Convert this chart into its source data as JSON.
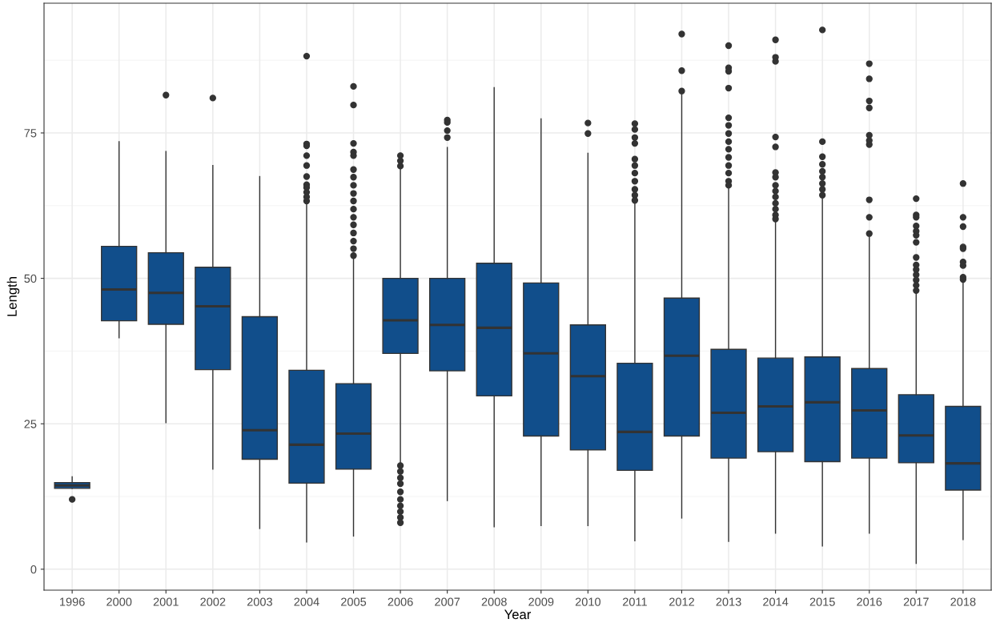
{
  "chart_data": {
    "type": "box",
    "xlabel": "Year",
    "ylabel": "Length",
    "categories": [
      "1996",
      "2000",
      "2001",
      "2002",
      "2003",
      "2004",
      "2005",
      "2006",
      "2007",
      "2008",
      "2009",
      "2010",
      "2011",
      "2012",
      "2013",
      "2014",
      "2015",
      "2016",
      "2017",
      "2018"
    ],
    "color": "#114e8b",
    "ylim": [
      -3.6,
      97.3
    ],
    "yticks": [
      0,
      25,
      50,
      75
    ],
    "grid": true,
    "boxes": [
      {
        "low": 13.9,
        "q1": 13.9,
        "median": 14.4,
        "q3": 14.9,
        "high": 15.9,
        "outliers": [
          12.0
        ]
      },
      {
        "low": 39.8,
        "q1": 42.7,
        "median": 48.1,
        "q3": 55.5,
        "high": 73.5
      },
      {
        "low": 25.2,
        "q1": 42.1,
        "median": 47.5,
        "q3": 54.4,
        "high": 71.8,
        "outliers": [
          81.5
        ]
      },
      {
        "low": 17.2,
        "q1": 34.3,
        "median": 45.2,
        "q3": 51.9,
        "high": 69.4,
        "outliers": [
          81.0
        ]
      },
      {
        "low": 7.0,
        "q1": 18.9,
        "median": 23.9,
        "q3": 43.4,
        "high": 67.5
      },
      {
        "low": 4.7,
        "q1": 14.8,
        "median": 21.4,
        "q3": 34.2,
        "high": 62.9,
        "outliers": [
          88.2,
          73.1,
          72.8,
          71.1,
          69.4,
          67.5,
          66.1,
          65.6,
          64.8,
          64.0,
          63.3
        ]
      },
      {
        "low": 5.7,
        "q1": 17.2,
        "median": 23.3,
        "q3": 31.9,
        "high": 53.7,
        "outliers": [
          83.0,
          79.8,
          73.2,
          71.7,
          71.1,
          68.7,
          67.4,
          66.0,
          64.6,
          63.3,
          61.9,
          60.5,
          59.2,
          57.8,
          56.4,
          55.1,
          53.9
        ]
      },
      {
        "low": 18.1,
        "q1": 37.1,
        "median": 42.8,
        "q3": 50.0,
        "high": 68.7,
        "outliers": [
          71.1,
          70.2,
          69.3,
          17.8,
          16.8,
          15.7,
          14.7,
          13.3,
          12.0,
          10.9,
          9.9,
          8.9,
          8.0
        ]
      },
      {
        "low": 11.8,
        "q1": 34.1,
        "median": 42.0,
        "q3": 50.0,
        "high": 72.5,
        "outliers": [
          77.2,
          76.8,
          75.4,
          74.2
        ]
      },
      {
        "low": 7.3,
        "q1": 29.8,
        "median": 41.5,
        "q3": 52.6,
        "high": 82.8
      },
      {
        "low": 7.5,
        "q1": 22.9,
        "median": 37.1,
        "q3": 49.2,
        "high": 77.4
      },
      {
        "low": 7.5,
        "q1": 20.5,
        "median": 33.2,
        "q3": 42.0,
        "high": 71.5,
        "outliers": [
          76.7,
          74.9
        ]
      },
      {
        "low": 4.9,
        "q1": 17.0,
        "median": 23.6,
        "q3": 35.4,
        "high": 63.1,
        "outliers": [
          76.6,
          75.6,
          74.2,
          73.2,
          70.5,
          69.4,
          68.1,
          66.7,
          65.3,
          64.3,
          63.4
        ]
      },
      {
        "low": 8.8,
        "q1": 22.9,
        "median": 36.7,
        "q3": 46.6,
        "high": 81.7,
        "outliers": [
          92.0,
          85.7,
          82.2
        ]
      },
      {
        "low": 4.8,
        "q1": 19.1,
        "median": 26.9,
        "q3": 37.8,
        "high": 65.7,
        "outliers": [
          90.0,
          86.2,
          85.6,
          82.7,
          77.6,
          76.3,
          74.9,
          73.5,
          72.2,
          70.8,
          69.4,
          68.1,
          66.7,
          66.0
        ]
      },
      {
        "low": 6.2,
        "q1": 20.2,
        "median": 28.0,
        "q3": 36.3,
        "high": 59.8,
        "outliers": [
          91.0,
          88.0,
          87.3,
          74.3,
          72.6,
          68.2,
          67.4,
          66.0,
          65.0,
          64.0,
          62.9,
          61.9,
          60.9,
          60.2
        ]
      },
      {
        "low": 4.0,
        "q1": 18.5,
        "median": 28.7,
        "q3": 36.5,
        "high": 63.6,
        "outliers": [
          92.7,
          73.5,
          70.9,
          69.6,
          68.4,
          67.4,
          66.3,
          65.3,
          64.3
        ]
      },
      {
        "low": 6.2,
        "q1": 19.1,
        "median": 27.3,
        "q3": 34.5,
        "high": 57.1,
        "outliers": [
          86.9,
          84.3,
          80.5,
          79.3,
          74.6,
          73.7,
          73.0,
          63.5,
          60.5,
          57.7
        ]
      },
      {
        "low": 1.0,
        "q1": 18.3,
        "median": 23.0,
        "q3": 30.0,
        "high": 47.5,
        "outliers": [
          63.7,
          60.9,
          60.5,
          59.0,
          58.1,
          57.4,
          56.2,
          53.6,
          52.3,
          51.5,
          50.6,
          49.7,
          48.8,
          47.9
        ]
      },
      {
        "low": 5.1,
        "q1": 13.6,
        "median": 18.2,
        "q3": 28.0,
        "high": 49.6,
        "outliers": [
          66.3,
          60.5,
          58.9,
          55.4,
          55.1,
          52.8,
          52.2,
          50.2,
          49.8
        ]
      }
    ]
  }
}
